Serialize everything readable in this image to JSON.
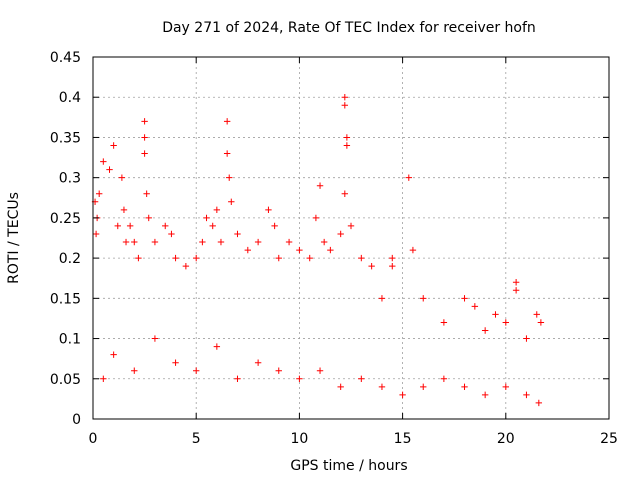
{
  "chart_data": {
    "type": "scatter",
    "title": "Day 271 of 2024, Rate Of TEC Index for receiver hofn",
    "xlabel": "GPS time / hours",
    "ylabel": "ROTI / TECUs",
    "xlim": [
      0,
      25
    ],
    "ylim": [
      0,
      0.45
    ],
    "x_ticks": [
      "0",
      "5",
      "10",
      "15",
      "20",
      "25"
    ],
    "y_ticks": [
      "0",
      "0.05",
      "0.1",
      "0.15",
      "0.2",
      "0.25",
      "0.3",
      "0.35",
      "0.4",
      "0.45"
    ],
    "grid": true,
    "marker": "+",
    "color": "#ff0000",
    "series": [
      {
        "points": [
          [
            0.1,
            0.27
          ],
          [
            0.15,
            0.23
          ],
          [
            0.2,
            0.25
          ],
          [
            0.3,
            0.28
          ],
          [
            0.5,
            0.32
          ],
          [
            0.8,
            0.31
          ],
          [
            1.0,
            0.34
          ],
          [
            1.2,
            0.24
          ],
          [
            1.4,
            0.3
          ],
          [
            1.5,
            0.26
          ],
          [
            1.6,
            0.22
          ],
          [
            1.8,
            0.24
          ],
          [
            2.0,
            0.22
          ],
          [
            2.2,
            0.2
          ],
          [
            2.5,
            0.37
          ],
          [
            2.5,
            0.35
          ],
          [
            2.5,
            0.33
          ],
          [
            2.6,
            0.28
          ],
          [
            2.7,
            0.25
          ],
          [
            3.0,
            0.22
          ],
          [
            3.5,
            0.24
          ],
          [
            3.8,
            0.23
          ],
          [
            4.0,
            0.2
          ],
          [
            4.5,
            0.19
          ],
          [
            5.0,
            0.2
          ],
          [
            5.3,
            0.22
          ],
          [
            5.5,
            0.25
          ],
          [
            5.8,
            0.24
          ],
          [
            6.0,
            0.26
          ],
          [
            6.2,
            0.22
          ],
          [
            6.5,
            0.37
          ],
          [
            6.5,
            0.33
          ],
          [
            6.6,
            0.3
          ],
          [
            6.7,
            0.27
          ],
          [
            7.0,
            0.23
          ],
          [
            7.5,
            0.21
          ],
          [
            8.0,
            0.22
          ],
          [
            8.5,
            0.26
          ],
          [
            8.8,
            0.24
          ],
          [
            9.0,
            0.2
          ],
          [
            9.5,
            0.22
          ],
          [
            10.0,
            0.21
          ],
          [
            10.5,
            0.2
          ],
          [
            10.8,
            0.25
          ],
          [
            11.0,
            0.29
          ],
          [
            11.2,
            0.22
          ],
          [
            11.5,
            0.21
          ],
          [
            12.0,
            0.23
          ],
          [
            12.2,
            0.4
          ],
          [
            12.2,
            0.39
          ],
          [
            12.3,
            0.35
          ],
          [
            12.3,
            0.34
          ],
          [
            12.2,
            0.28
          ],
          [
            12.5,
            0.24
          ],
          [
            13.0,
            0.2
          ],
          [
            13.5,
            0.19
          ],
          [
            14.0,
            0.15
          ],
          [
            14.5,
            0.2
          ],
          [
            14.5,
            0.19
          ],
          [
            15.3,
            0.3
          ],
          [
            15.5,
            0.21
          ],
          [
            16.0,
            0.15
          ],
          [
            17.0,
            0.12
          ],
          [
            18.0,
            0.15
          ],
          [
            18.5,
            0.14
          ],
          [
            19.0,
            0.11
          ],
          [
            19.5,
            0.13
          ],
          [
            20.0,
            0.12
          ],
          [
            20.5,
            0.17
          ],
          [
            20.5,
            0.16
          ],
          [
            21.0,
            0.1
          ],
          [
            21.5,
            0.13
          ],
          [
            21.7,
            0.12
          ],
          [
            0.5,
            0.05
          ],
          [
            1.0,
            0.08
          ],
          [
            2.0,
            0.06
          ],
          [
            3.0,
            0.1
          ],
          [
            4.0,
            0.07
          ],
          [
            5.0,
            0.06
          ],
          [
            6.0,
            0.09
          ],
          [
            7.0,
            0.05
          ],
          [
            8.0,
            0.07
          ],
          [
            9.0,
            0.06
          ],
          [
            10.0,
            0.05
          ],
          [
            11.0,
            0.06
          ],
          [
            12.0,
            0.04
          ],
          [
            13.0,
            0.05
          ],
          [
            14.0,
            0.04
          ],
          [
            15.0,
            0.03
          ],
          [
            16.0,
            0.04
          ],
          [
            17.0,
            0.05
          ],
          [
            18.0,
            0.04
          ],
          [
            19.0,
            0.03
          ],
          [
            20.0,
            0.04
          ],
          [
            21.0,
            0.03
          ],
          [
            21.6,
            0.02
          ]
        ]
      }
    ]
  }
}
